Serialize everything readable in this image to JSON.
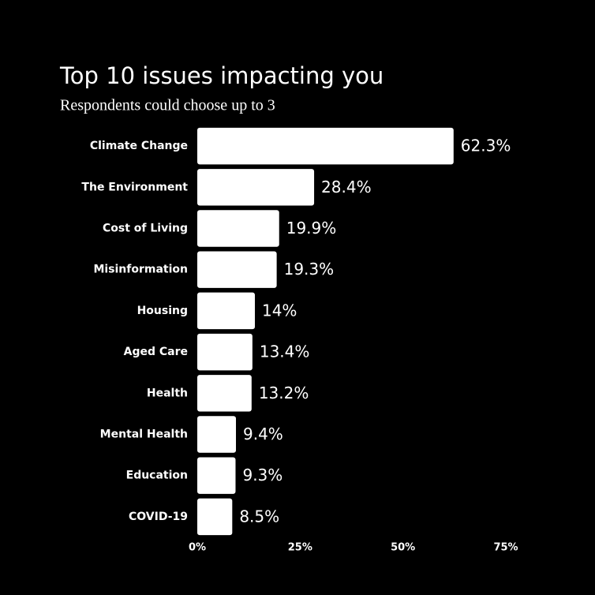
{
  "chart_data": {
    "type": "bar",
    "orientation": "horizontal",
    "title": "Top 10 issues impacting you",
    "subtitle": "Respondents could choose up to 3",
    "categories": [
      "Climate Change",
      "The Environment",
      "Cost of Living",
      "Misinformation",
      "Housing",
      "Aged Care",
      "Health",
      "Mental Health",
      "Education",
      "COVID-19"
    ],
    "values": [
      62.3,
      28.4,
      19.9,
      19.3,
      14,
      13.4,
      13.2,
      9.4,
      9.3,
      8.5
    ],
    "value_labels": [
      "62.3%",
      "28.4%",
      "19.9%",
      "19.3%",
      "14%",
      "13.4%",
      "13.2%",
      "9.4%",
      "9.3%",
      "8.5%"
    ],
    "color": "#ffffff",
    "xlim": [
      0,
      75
    ],
    "xticks": [
      {
        "value": 0,
        "label": "0%"
      },
      {
        "value": 25,
        "label": "25%"
      },
      {
        "value": 50,
        "label": "50%"
      },
      {
        "value": 75,
        "label": "75%"
      }
    ],
    "grid": false
  }
}
